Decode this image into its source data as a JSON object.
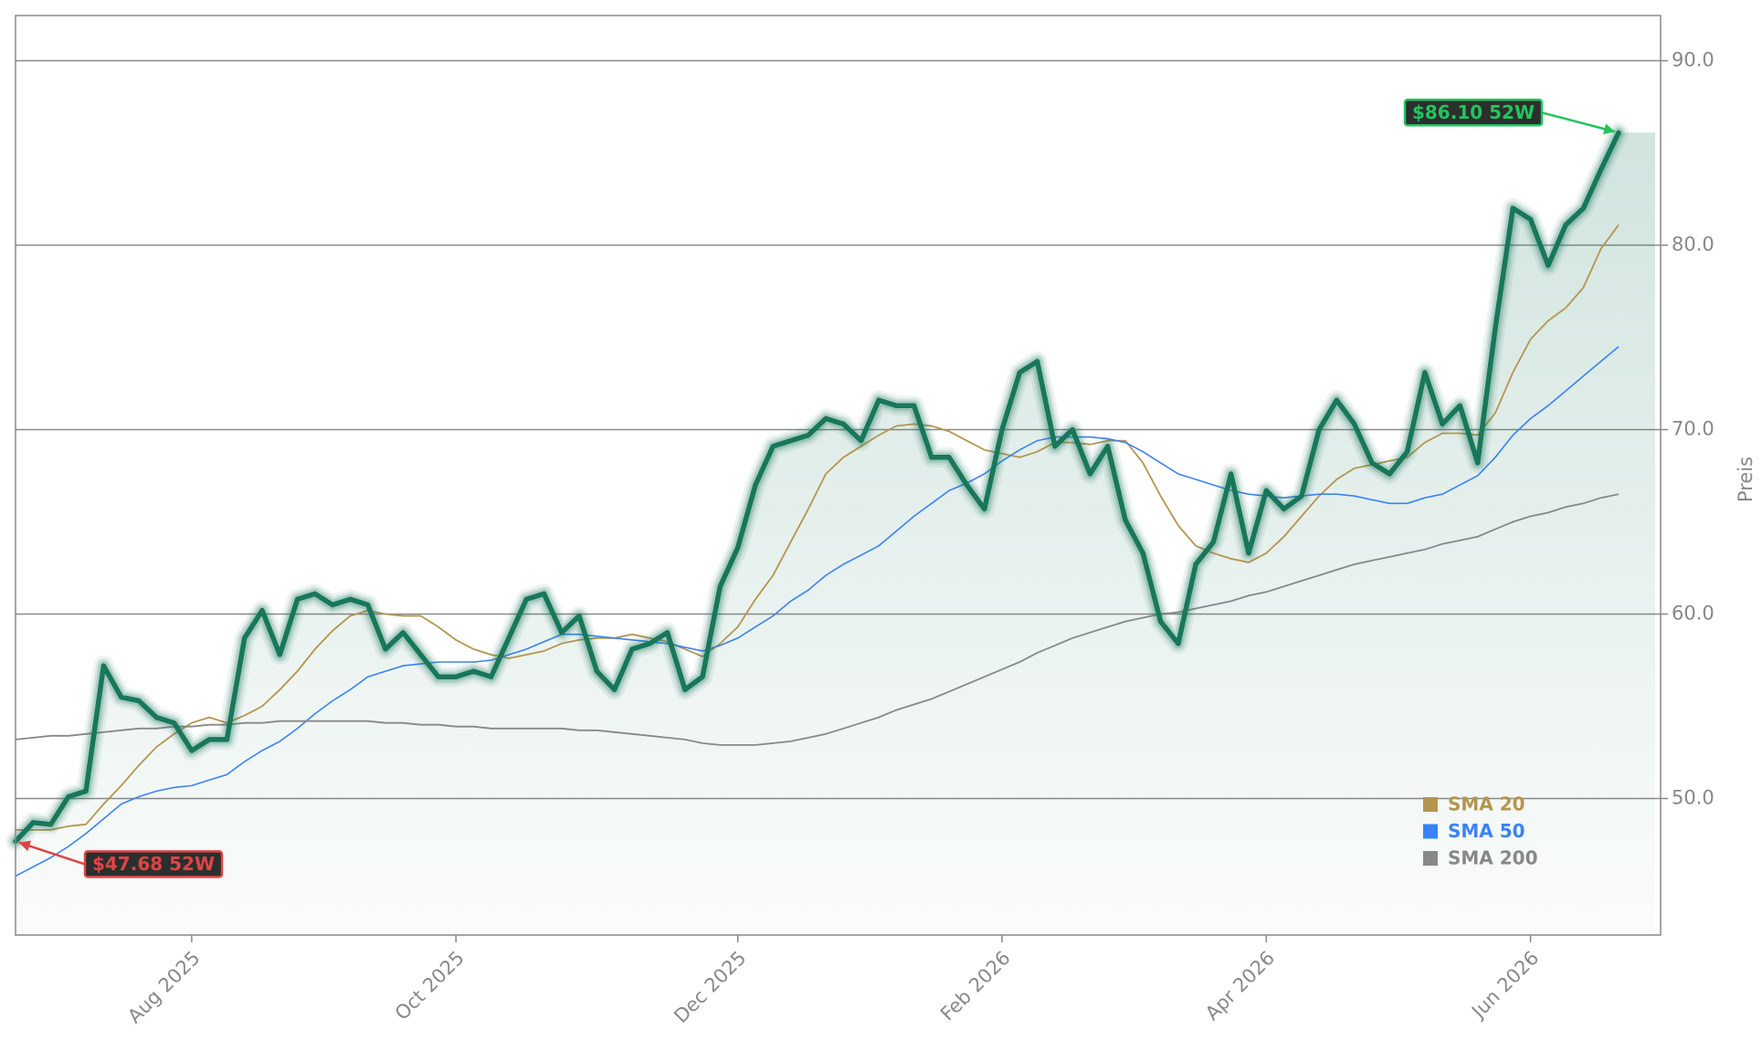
{
  "chart_data": {
    "type": "line",
    "y_label": "Preis",
    "categories": [
      null,
      null,
      null,
      null,
      null,
      null,
      null,
      null,
      null,
      null,
      "Aug 2025",
      null,
      null,
      null,
      null,
      null,
      null,
      null,
      null,
      null,
      null,
      null,
      null,
      null,
      null,
      "Oct 2025",
      null,
      null,
      null,
      null,
      null,
      null,
      null,
      null,
      null,
      null,
      null,
      null,
      null,
      null,
      null,
      "Dec 2025",
      null,
      null,
      null,
      null,
      null,
      null,
      null,
      null,
      null,
      null,
      null,
      null,
      null,
      null,
      "Feb 2026",
      null,
      null,
      null,
      null,
      null,
      null,
      null,
      null,
      null,
      null,
      null,
      null,
      null,
      null,
      "Apr 2026",
      null,
      null,
      null,
      null,
      null,
      null,
      null,
      null,
      null,
      null,
      null,
      null,
      null,
      null,
      "Jun 2026",
      null,
      null,
      null,
      null,
      null
    ],
    "color": "#18775a",
    "values": [
      47.68,
      48.7,
      48.6,
      50.1,
      50.4,
      57.2,
      55.5,
      55.3,
      54.4,
      54.1,
      52.6,
      53.2,
      53.2,
      58.7,
      60.2,
      57.8,
      60.8,
      61.1,
      60.5,
      60.8,
      60.5,
      58.1,
      59.0,
      57.8,
      56.6,
      56.6,
      56.9,
      56.6,
      58.7,
      60.8,
      61.1,
      59.0,
      59.9,
      56.9,
      55.9,
      58.1,
      58.4,
      59.0,
      55.9,
      56.6,
      61.5,
      63.6,
      67.0,
      69.1,
      69.4,
      69.7,
      70.6,
      70.3,
      69.4,
      71.6,
      71.3,
      71.3,
      68.5,
      68.5,
      67.0,
      65.7,
      70.0,
      73.1,
      73.7,
      69.1,
      70.0,
      67.6,
      69.1,
      65.1,
      63.3,
      59.6,
      58.4,
      62.7,
      63.9,
      67.6,
      63.3,
      66.7,
      65.7,
      66.4,
      70.0,
      71.6,
      70.3,
      68.2,
      67.6,
      68.8,
      73.1,
      70.3,
      71.3,
      68.2,
      75.5,
      82.0,
      81.4,
      78.9,
      81.1,
      82.0,
      84.1,
      86.1
    ],
    "series": [
      {
        "name": "SMA 20",
        "color": "#b5954f",
        "values": [
          48.3,
          48.3,
          48.3,
          48.5,
          48.6,
          49.7,
          50.7,
          51.8,
          52.8,
          53.5,
          54.1,
          54.4,
          54.1,
          54.5,
          55.0,
          55.9,
          56.9,
          58.1,
          59.1,
          59.9,
          60.2,
          60.0,
          59.9,
          59.9,
          59.3,
          58.6,
          58.1,
          57.8,
          57.6,
          57.8,
          58.0,
          58.4,
          58.6,
          58.7,
          58.7,
          58.9,
          58.7,
          58.5,
          58.1,
          57.7,
          58.4,
          59.3,
          60.8,
          62.1,
          63.9,
          65.7,
          67.6,
          68.5,
          69.1,
          69.7,
          70.2,
          70.3,
          70.2,
          69.9,
          69.4,
          68.9,
          68.7,
          68.5,
          68.8,
          69.3,
          69.3,
          69.2,
          69.4,
          69.4,
          68.2,
          66.4,
          64.8,
          63.7,
          63.3,
          63.0,
          62.8,
          63.3,
          64.2,
          65.3,
          66.4,
          67.3,
          67.9,
          68.1,
          68.3,
          68.5,
          69.3,
          69.8,
          69.8,
          69.7,
          70.9,
          73.1,
          74.9,
          75.9,
          76.6,
          77.7,
          79.8,
          81.1
        ]
      },
      {
        "name": "SMA 50",
        "color": "#3b82f6",
        "values": [
          45.8,
          46.3,
          46.8,
          47.4,
          48.1,
          48.9,
          49.7,
          50.1,
          50.4,
          50.6,
          50.7,
          51.0,
          51.3,
          52.0,
          52.6,
          53.1,
          53.8,
          54.6,
          55.3,
          55.9,
          56.6,
          56.9,
          57.2,
          57.3,
          57.4,
          57.4,
          57.4,
          57.5,
          57.8,
          58.1,
          58.5,
          58.9,
          58.9,
          58.8,
          58.7,
          58.6,
          58.5,
          58.4,
          58.2,
          58.0,
          58.3,
          58.7,
          59.3,
          59.9,
          60.7,
          61.3,
          62.1,
          62.7,
          63.2,
          63.7,
          64.5,
          65.3,
          66.0,
          66.7,
          67.1,
          67.6,
          68.3,
          68.9,
          69.4,
          69.6,
          69.6,
          69.6,
          69.5,
          69.3,
          68.8,
          68.2,
          67.6,
          67.3,
          67.0,
          66.7,
          66.5,
          66.4,
          66.3,
          66.4,
          66.5,
          66.5,
          66.4,
          66.2,
          66.0,
          66.0,
          66.3,
          66.5,
          67.0,
          67.5,
          68.5,
          69.7,
          70.6,
          71.3,
          72.1,
          72.9,
          73.7,
          74.5
        ]
      },
      {
        "name": "SMA 200",
        "color": "#888888",
        "values": [
          53.2,
          53.3,
          53.4,
          53.4,
          53.5,
          53.6,
          53.7,
          53.8,
          53.8,
          53.9,
          53.9,
          54.0,
          54.0,
          54.1,
          54.1,
          54.2,
          54.2,
          54.2,
          54.2,
          54.2,
          54.2,
          54.1,
          54.1,
          54.0,
          54.0,
          53.9,
          53.9,
          53.8,
          53.8,
          53.8,
          53.8,
          53.8,
          53.7,
          53.7,
          53.6,
          53.5,
          53.4,
          53.3,
          53.2,
          53.0,
          52.9,
          52.9,
          52.9,
          53.0,
          53.1,
          53.3,
          53.5,
          53.8,
          54.1,
          54.4,
          54.8,
          55.1,
          55.4,
          55.8,
          56.2,
          56.6,
          57.0,
          57.4,
          57.9,
          58.3,
          58.7,
          59.0,
          59.3,
          59.6,
          59.8,
          60.0,
          60.1,
          60.3,
          60.5,
          60.7,
          61.0,
          61.2,
          61.5,
          61.8,
          62.1,
          62.4,
          62.7,
          62.9,
          63.1,
          63.3,
          63.5,
          63.8,
          64.0,
          64.2,
          64.6,
          65.0,
          65.3,
          65.5,
          65.8,
          66.0,
          66.3,
          66.5
        ]
      }
    ],
    "annotations": [
      {
        "text": "$86.10 52W",
        "color": "#22c55e",
        "at": "max"
      },
      {
        "text": "$47.68 52W",
        "color": "#e04444",
        "at": "min"
      }
    ],
    "ylim": [
      42.6,
      92.45
    ],
    "yticks": [
      {
        "value": 50,
        "label": "50.0"
      },
      {
        "value": 60,
        "label": "60.0"
      },
      {
        "value": 70,
        "label": "70.0"
      },
      {
        "value": 80,
        "label": "80.0"
      },
      {
        "value": 90,
        "label": "90.0"
      }
    ],
    "grid": true,
    "legend": "lower right"
  }
}
